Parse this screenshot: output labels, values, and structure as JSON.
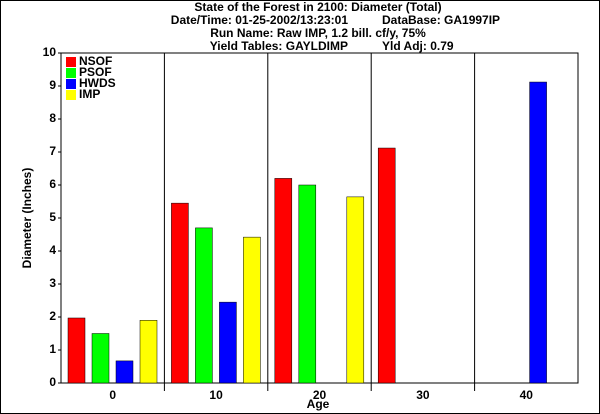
{
  "chart_data": {
    "type": "bar",
    "title_lines": [
      [
        "State of the Forest in 2100: Diameter (Total)"
      ],
      [
        "Date/Time: 01-25-2002/13:23:01",
        "DataBase: GA1997IP"
      ],
      [
        "Run Name: Raw IMP, 1.2 bill. cf/y, 75%"
      ],
      [
        "Yield Tables: GAYLDIMP",
        "Yld Adj: 0.79"
      ]
    ],
    "x_label": "Age",
    "y_label": "Diameter (Inches)",
    "categories": [
      "0",
      "10",
      "20",
      "30",
      "40"
    ],
    "series": [
      {
        "name": "NSOF",
        "color": "#ff0000",
        "values": [
          1.97,
          5.45,
          6.2,
          7.12,
          null
        ]
      },
      {
        "name": "PSOF",
        "color": "#00ff00",
        "values": [
          1.5,
          4.7,
          6.0,
          null,
          null
        ]
      },
      {
        "name": "HWDS",
        "color": "#0000ff",
        "values": [
          0.67,
          2.45,
          null,
          null,
          9.12
        ]
      },
      {
        "name": "IMP",
        "color": "#ffff00",
        "values": [
          1.9,
          4.42,
          5.64,
          null,
          null
        ]
      }
    ],
    "ylim": [
      0,
      10
    ],
    "yticks": [
      0,
      1,
      2,
      3,
      4,
      5,
      6,
      7,
      8,
      9,
      10
    ],
    "legend": "top-left"
  }
}
